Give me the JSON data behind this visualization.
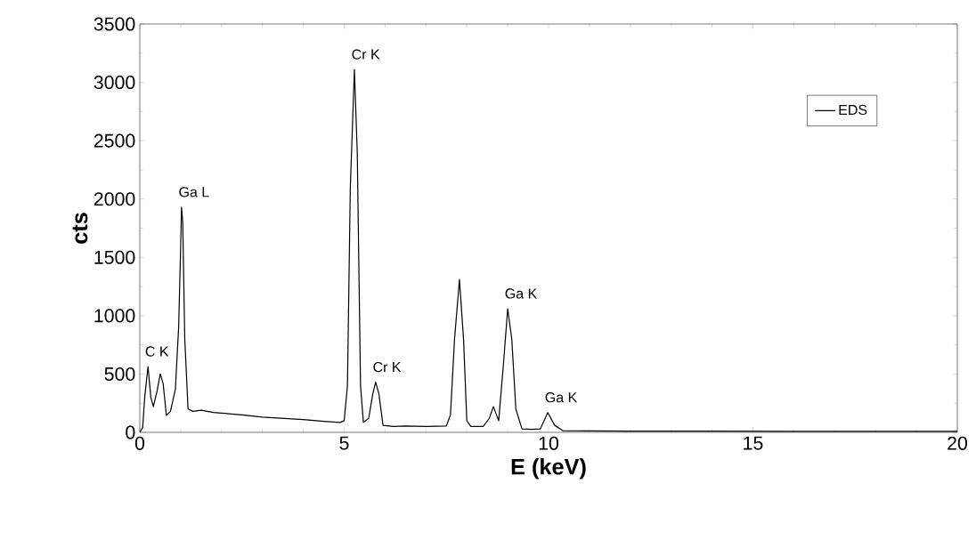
{
  "chart_data": {
    "type": "line",
    "xlabel": "E (keV)",
    "ylabel": "cts",
    "x": [
      0,
      0.07,
      0.12,
      0.2,
      0.27,
      0.33,
      0.42,
      0.5,
      0.57,
      0.65,
      0.75,
      0.87,
      0.95,
      1.0,
      1.02,
      1.05,
      1.1,
      1.18,
      1.3,
      1.5,
      1.8,
      2.0,
      2.5,
      3.0,
      3.5,
      4.0,
      4.5,
      4.9,
      5.0,
      5.08,
      5.15,
      5.25,
      5.32,
      5.4,
      5.47,
      5.6,
      5.7,
      5.77,
      5.85,
      5.95,
      6.2,
      6.5,
      7.0,
      7.5,
      7.6,
      7.7,
      7.82,
      7.92,
      8.0,
      8.1,
      8.4,
      8.55,
      8.65,
      8.78,
      8.9,
      9.0,
      9.1,
      9.2,
      9.35,
      9.6,
      9.8,
      9.98,
      10.15,
      10.35,
      11,
      12,
      14,
      16,
      18,
      20
    ],
    "series": [
      {
        "name": "EDS",
        "color": "#000000",
        "values": [
          0,
          40,
          300,
          564,
          300,
          220,
          350,
          500,
          420,
          145,
          180,
          370,
          900,
          1600,
          1930,
          1800,
          800,
          200,
          180,
          190,
          170,
          165,
          150,
          130,
          120,
          110,
          95,
          85,
          100,
          400,
          2100,
          3110,
          2400,
          400,
          85,
          120,
          330,
          430,
          330,
          60,
          50,
          55,
          50,
          55,
          150,
          800,
          1310,
          800,
          100,
          50,
          50,
          120,
          220,
          100,
          600,
          1060,
          800,
          200,
          30,
          25,
          30,
          170,
          60,
          15,
          12,
          10,
          10,
          8,
          8,
          8
        ]
      }
    ],
    "xlim": [
      0,
      20
    ],
    "xticks": [
      0,
      5,
      10,
      15,
      20
    ],
    "ylim": [
      0,
      3500
    ],
    "yticks": [
      0,
      500,
      1000,
      1500,
      2000,
      2500,
      3000,
      3500
    ],
    "annotations": [
      {
        "text": "C K",
        "x": 0.2,
        "y": 564
      },
      {
        "text": "Ga L",
        "x": 1.02,
        "y": 1930
      },
      {
        "text": "Cr K",
        "x": 5.25,
        "y": 3110
      },
      {
        "text": "Cr K",
        "x": 5.77,
        "y": 430
      },
      {
        "text": "Ga K",
        "x": 9.0,
        "y": 1060
      },
      {
        "text": "Ga K",
        "x": 9.98,
        "y": 170
      }
    ],
    "legend": "top right",
    "grid": false,
    "marker": "none",
    "line_style": "solid"
  }
}
